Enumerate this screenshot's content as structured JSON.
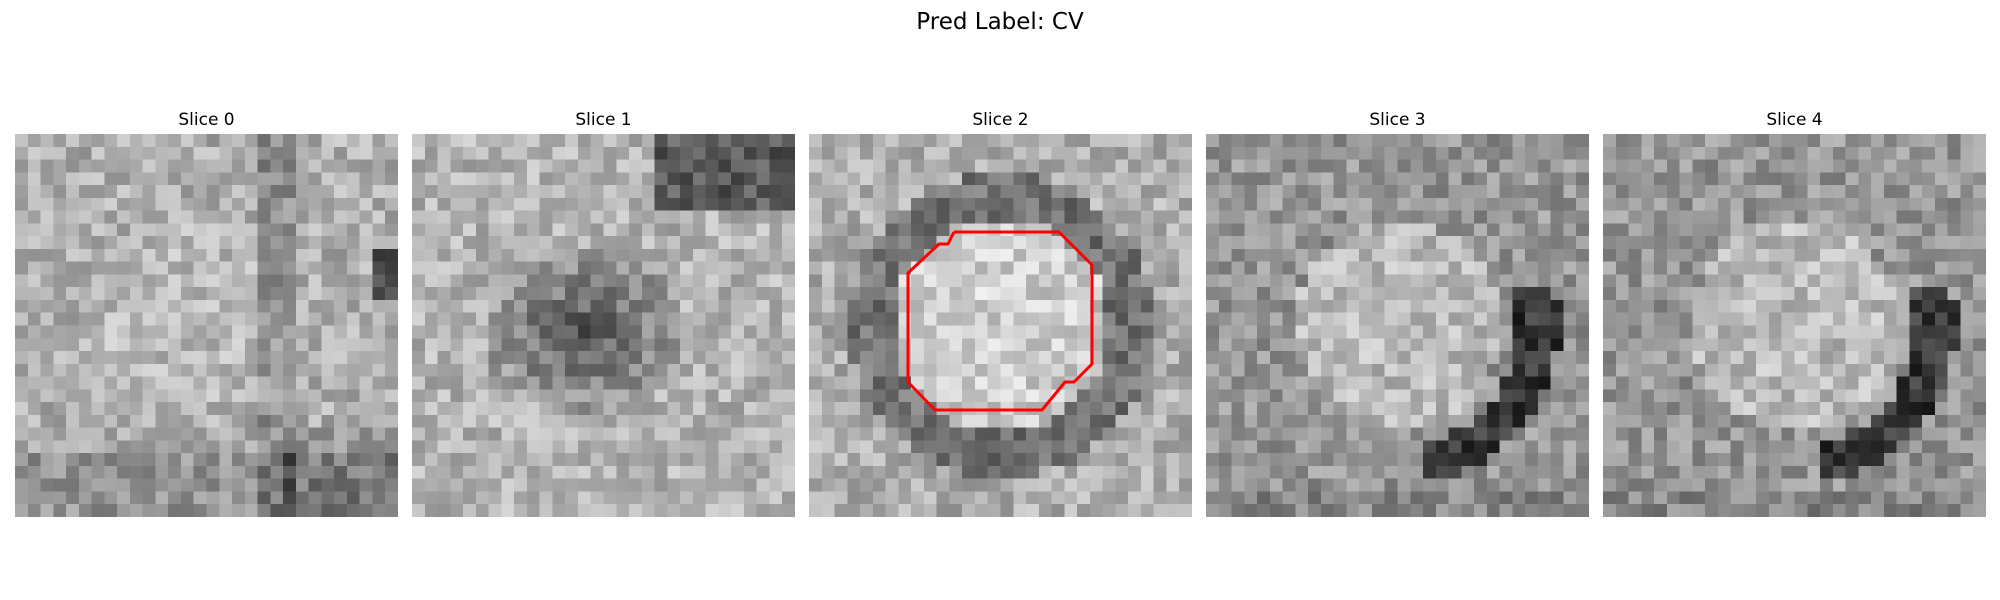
{
  "figure": {
    "title": "Pred Label: CV",
    "colormap": "gray"
  },
  "panels": [
    {
      "title": "Slice 0",
      "contour": false,
      "pattern": "bright-left-dark-right-bar"
    },
    {
      "title": "Slice 1",
      "contour": false,
      "pattern": "dark-center-blob"
    },
    {
      "title": "Slice 2",
      "contour": true,
      "pattern": "bright-core-dark-ring"
    },
    {
      "title": "Slice 3",
      "contour": false,
      "pattern": "bright-core-dark-arc-right"
    },
    {
      "title": "Slice 4",
      "contour": false,
      "pattern": "bright-core-dark-arc-right"
    }
  ],
  "contour": {
    "color": "#ff0000",
    "panel_index": 2
  }
}
